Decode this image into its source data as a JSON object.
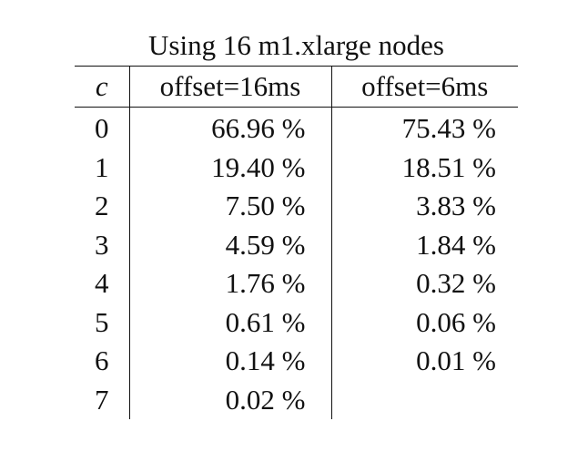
{
  "table": {
    "caption": "Using 16 m1.xlarge nodes",
    "headers": [
      "c",
      "offset=16ms",
      "offset=6ms"
    ],
    "rows": [
      {
        "c": "0",
        "offset16": "66.96 %",
        "offset6": "75.43 %"
      },
      {
        "c": "1",
        "offset16": "19.40 %",
        "offset6": "18.51 %"
      },
      {
        "c": "2",
        "offset16": "7.50 %",
        "offset6": "3.83 %"
      },
      {
        "c": "3",
        "offset16": "4.59 %",
        "offset6": "1.84 %"
      },
      {
        "c": "4",
        "offset16": "1.76 %",
        "offset6": "0.32 %"
      },
      {
        "c": "5",
        "offset16": "0.61 %",
        "offset6": "0.06 %"
      },
      {
        "c": "6",
        "offset16": "0.14 %",
        "offset6": "0.01 %"
      },
      {
        "c": "7",
        "offset16": "0.02 %",
        "offset6": ""
      }
    ]
  }
}
